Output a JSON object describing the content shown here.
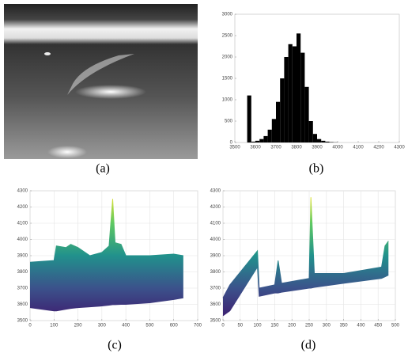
{
  "captions": [
    "(a)",
    "(b)",
    "(c)",
    "(d)"
  ],
  "chart_data": [
    {
      "type": "histogram",
      "color": "#000000",
      "bins": [
        3540,
        3560,
        3580,
        3600,
        3620,
        3640,
        3660,
        3680,
        3700,
        3720,
        3740,
        3760,
        3780,
        3800,
        3820,
        3840,
        3860,
        3880,
        3900,
        3920,
        3940,
        3960,
        3980,
        4000
      ],
      "counts": [
        0,
        1100,
        20,
        40,
        80,
        150,
        300,
        550,
        950,
        1500,
        2000,
        2300,
        2250,
        2550,
        2100,
        1300,
        500,
        200,
        80,
        40,
        20,
        10,
        5
      ],
      "xlim": [
        3500,
        4300
      ],
      "xticks": [
        3500,
        3600,
        3700,
        3800,
        3900,
        4000,
        4100,
        4200,
        4300
      ],
      "ylim": [
        0,
        3000
      ],
      "yticks": [
        0,
        500,
        1000,
        1500,
        2000,
        2500,
        3000
      ],
      "grid": false
    },
    {
      "type": "surface",
      "colormap": [
        "#3e1a6e",
        "#3b528b",
        "#21918c",
        "#5ec962",
        "#fde725"
      ],
      "x": [
        0,
        100,
        110,
        150,
        170,
        200,
        250,
        300,
        330,
        345,
        355,
        380,
        400,
        500,
        600,
        640
      ],
      "upper": [
        3860,
        3870,
        3960,
        3950,
        3970,
        3950,
        3900,
        3920,
        3960,
        4250,
        3980,
        3970,
        3900,
        3900,
        3910,
        3900
      ],
      "lower": [
        3580,
        3560,
        3560,
        3570,
        3575,
        3580,
        3585,
        3590,
        3595,
        3598,
        3598,
        3600,
        3600,
        3610,
        3630,
        3640
      ],
      "xlim": [
        0,
        700
      ],
      "xticks": [
        0,
        100,
        200,
        300,
        400,
        500,
        600,
        700
      ],
      "ylim": [
        3500,
        4300
      ],
      "yticks": [
        3500,
        3600,
        3700,
        3800,
        3900,
        4000,
        4100,
        4200,
        4300
      ],
      "grid": true
    },
    {
      "type": "surface",
      "colormap": [
        "#3e1a6e",
        "#3b528b",
        "#21918c",
        "#5ec962",
        "#fde725"
      ],
      "x": [
        0,
        20,
        100,
        105,
        150,
        160,
        170,
        250,
        255,
        265,
        350,
        460,
        470,
        480
      ],
      "upper": [
        3640,
        3720,
        3930,
        3700,
        3720,
        3870,
        3730,
        3760,
        4260,
        3790,
        3790,
        3830,
        3960,
        3990
      ],
      "lower": [
        3530,
        3560,
        3830,
        3650,
        3670,
        3670,
        3675,
        3700,
        3700,
        3705,
        3730,
        3760,
        3770,
        3780
      ],
      "xlim": [
        0,
        500
      ],
      "xticks": [
        0,
        50,
        100,
        150,
        200,
        250,
        300,
        350,
        400,
        450,
        500
      ],
      "ylim": [
        3500,
        4300
      ],
      "yticks": [
        3500,
        3600,
        3700,
        3800,
        3900,
        4000,
        4100,
        4200,
        4300
      ],
      "grid": true
    }
  ]
}
